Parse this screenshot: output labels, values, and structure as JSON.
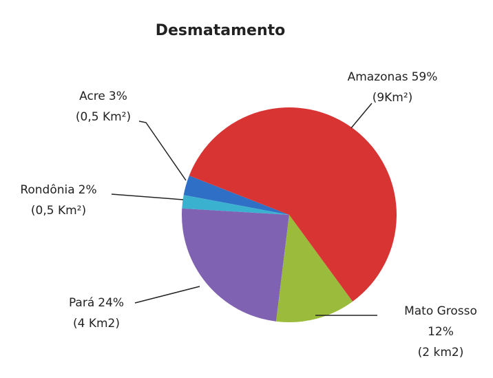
{
  "chart_data": {
    "type": "pie",
    "title": "Desmatamento",
    "categories": [
      "Amazonas",
      "Mato Grosso",
      "Pará",
      "Rondônia",
      "Acre"
    ],
    "values": [
      59,
      12,
      24,
      2,
      3
    ],
    "value_labels": [
      "59%",
      "12%",
      "24%",
      "2%",
      "3%"
    ],
    "area_labels": [
      "(9Km²)",
      "(2 km2)",
      "(4 Km2)",
      "(0,5 Km²)",
      "(0,5 Km²)"
    ],
    "colors": [
      "#d93434",
      "#9bbb3c",
      "#7f62b1",
      "#3bb1d0",
      "#2f6fc5"
    ]
  }
}
